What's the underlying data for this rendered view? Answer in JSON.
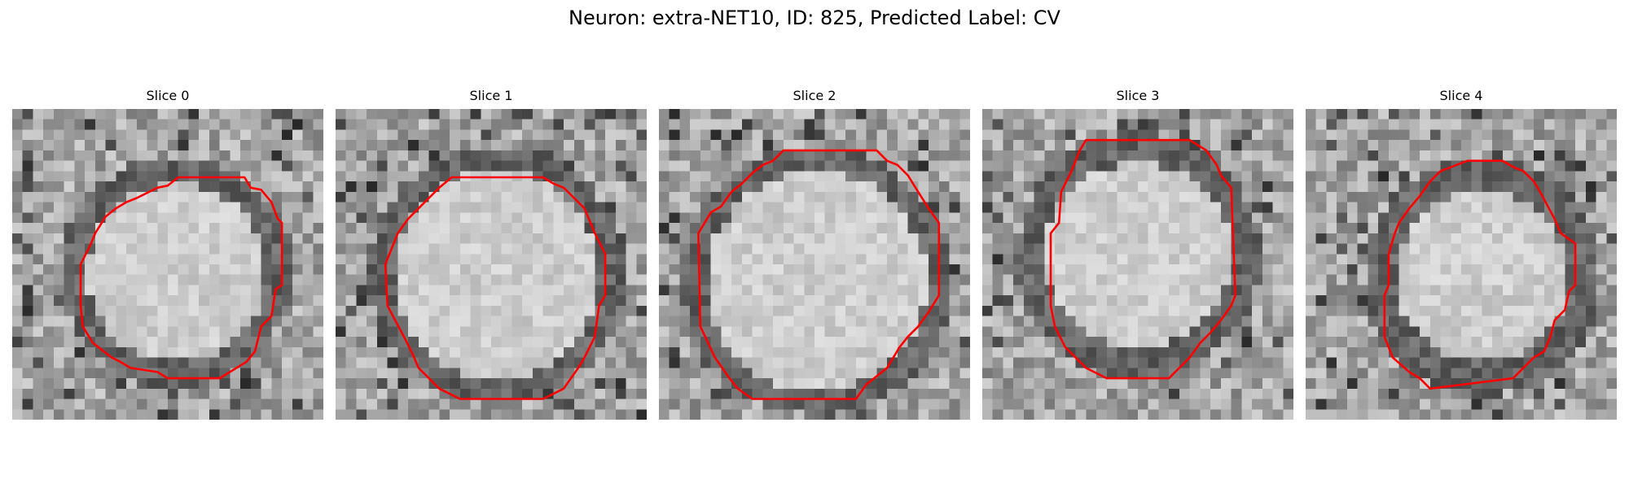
{
  "figure": {
    "title": "Neuron: extra-NET10, ID: 825, Predicted Label: CV"
  },
  "panels": [
    {
      "title": "Slice 0"
    },
    {
      "title": "Slice 1"
    },
    {
      "title": "Slice 2"
    },
    {
      "title": "Slice 3"
    },
    {
      "title": "Slice 4"
    }
  ],
  "colors": {
    "background": "#ffffff",
    "contour": "#ff0000",
    "text": "#000000"
  }
}
